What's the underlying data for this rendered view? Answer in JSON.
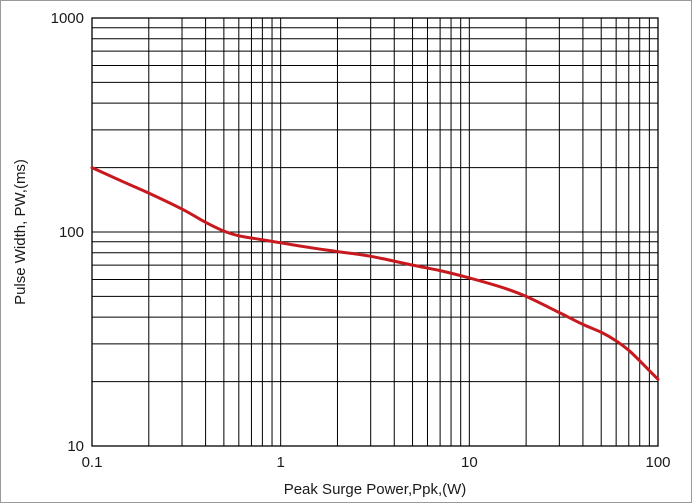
{
  "chart_data": {
    "type": "line",
    "xlabel": "Peak Surge Power,Ppk,(W)",
    "ylabel": "Pulse Width, PW,(ms)",
    "xscale": "log",
    "yscale": "log",
    "xlim": [
      0.1,
      100
    ],
    "ylim": [
      10,
      1000
    ],
    "grid": true,
    "x_ticks": [
      "0.1",
      "1",
      "10",
      "100"
    ],
    "y_ticks": [
      "10",
      "100",
      "1000"
    ],
    "line_color": "#c8191e",
    "series": [
      {
        "x": [
          0.1,
          0.15,
          0.2,
          0.3,
          0.4,
          0.5,
          0.6,
          0.8,
          1,
          1.5,
          2,
          3,
          5,
          7,
          10,
          15,
          20,
          30,
          40,
          50,
          60,
          70,
          80,
          90,
          100
        ],
        "y": [
          200,
          170,
          152,
          128,
          111,
          101,
          96,
          92,
          89,
          84,
          81,
          77,
          70,
          66,
          61,
          55,
          50,
          42,
          37,
          34,
          31,
          28,
          25,
          22.5,
          20.5
        ]
      }
    ]
  }
}
